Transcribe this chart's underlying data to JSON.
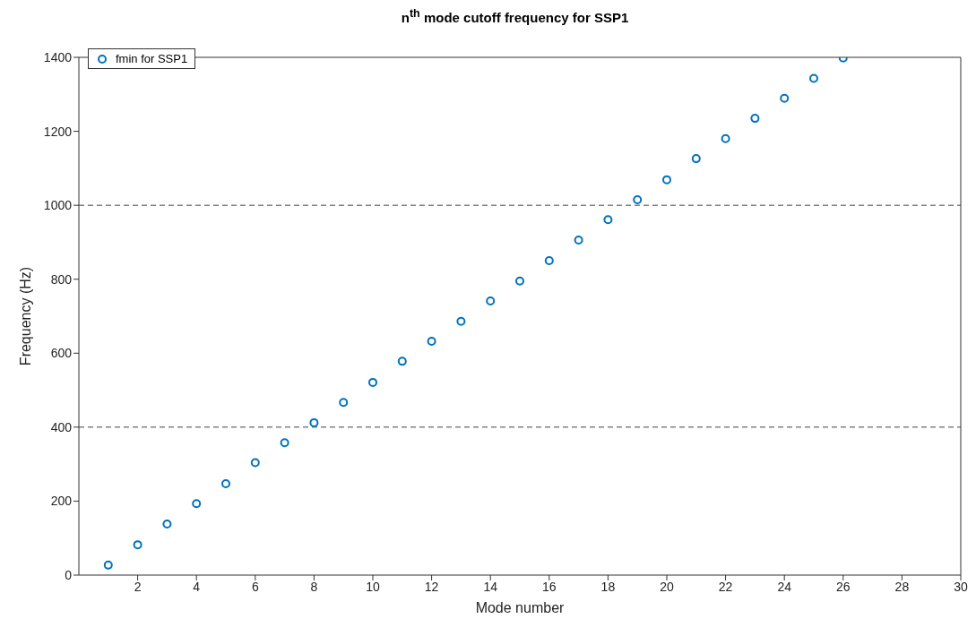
{
  "chart_data": {
    "type": "scatter",
    "title": "n$^{th}$ mode cutoff frequency for SSP1",
    "xlabel": "Mode number",
    "ylabel": "Frequency (Hz)",
    "x": [
      1,
      2,
      3,
      4,
      5,
      6,
      7,
      8,
      9,
      10,
      11,
      12,
      13,
      14,
      15,
      16,
      17,
      18,
      19,
      20,
      21,
      22,
      23,
      24,
      25,
      26
    ],
    "series": [
      {
        "name": "fmin for SSP1",
        "color": "#0072bd",
        "values": [
          27,
          82,
          138,
          193,
          247,
          304,
          358,
          412,
          467,
          521,
          578,
          632,
          686,
          741,
          795,
          850,
          906,
          961,
          1015,
          1069,
          1126,
          1180,
          1235,
          1289,
          1343,
          1398
        ]
      }
    ],
    "xlim": [
      0,
      30
    ],
    "xticks": [
      2,
      4,
      6,
      8,
      10,
      12,
      14,
      16,
      18,
      20,
      22,
      24,
      26,
      28,
      30
    ],
    "ylim": [
      0,
      1400
    ],
    "yticks": [
      0,
      200,
      400,
      600,
      800,
      1000,
      1200,
      1400
    ],
    "ref_lines": [
      {
        "axis": "y",
        "value": 400,
        "color": "#808080",
        "line_style": "dashed"
      },
      {
        "axis": "y",
        "value": 1000,
        "color": "#808080",
        "line_style": "dashed"
      }
    ],
    "legend": "top left",
    "marker": "circle",
    "grid": false
  }
}
